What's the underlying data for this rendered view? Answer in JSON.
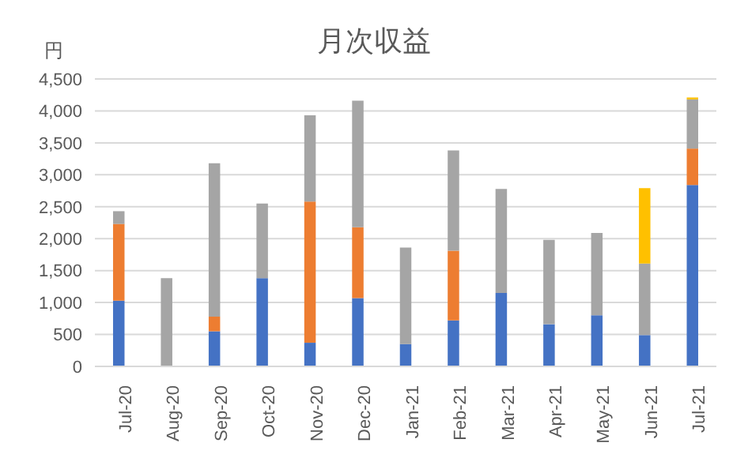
{
  "chart_data": {
    "type": "bar",
    "title": "月次収益",
    "ylabel": "円",
    "stacked": true,
    "grid": "y",
    "categories": [
      "Jul-20",
      "Aug-20",
      "Sep-20",
      "Oct-20",
      "Nov-20",
      "Dec-20",
      "Jan-21",
      "Feb-21",
      "Mar-21",
      "Apr-21",
      "May-21",
      "Jun-21",
      "Jul-21"
    ],
    "series": [
      {
        "color": "#4472c4",
        "values": [
          1030,
          0,
          550,
          1380,
          370,
          1070,
          350,
          720,
          1150,
          660,
          800,
          490,
          2840
        ]
      },
      {
        "color": "#ed7d31",
        "values": [
          1200,
          0,
          230,
          0,
          2210,
          1110,
          0,
          1090,
          0,
          0,
          0,
          0,
          570
        ]
      },
      {
        "color": "#a5a5a5",
        "values": [
          200,
          1380,
          2400,
          1170,
          1350,
          1980,
          1510,
          1570,
          1630,
          1320,
          1290,
          1120,
          770
        ]
      },
      {
        "color": "#ffc000",
        "values": [
          0,
          0,
          0,
          0,
          0,
          0,
          0,
          0,
          0,
          0,
          0,
          1180,
          30
        ]
      }
    ],
    "ylim": [
      0,
      4500
    ],
    "yticks": [
      {
        "value": 0,
        "label": "0"
      },
      {
        "value": 500,
        "label": "500"
      },
      {
        "value": 1000,
        "label": "1,000"
      },
      {
        "value": 1500,
        "label": "1,500"
      },
      {
        "value": 2000,
        "label": "2,000"
      },
      {
        "value": 2500,
        "label": "2,500"
      },
      {
        "value": 3000,
        "label": "3,000"
      },
      {
        "value": 3500,
        "label": "3,500"
      },
      {
        "value": 4000,
        "label": "4,000"
      },
      {
        "value": 4500,
        "label": "4,500"
      }
    ]
  }
}
